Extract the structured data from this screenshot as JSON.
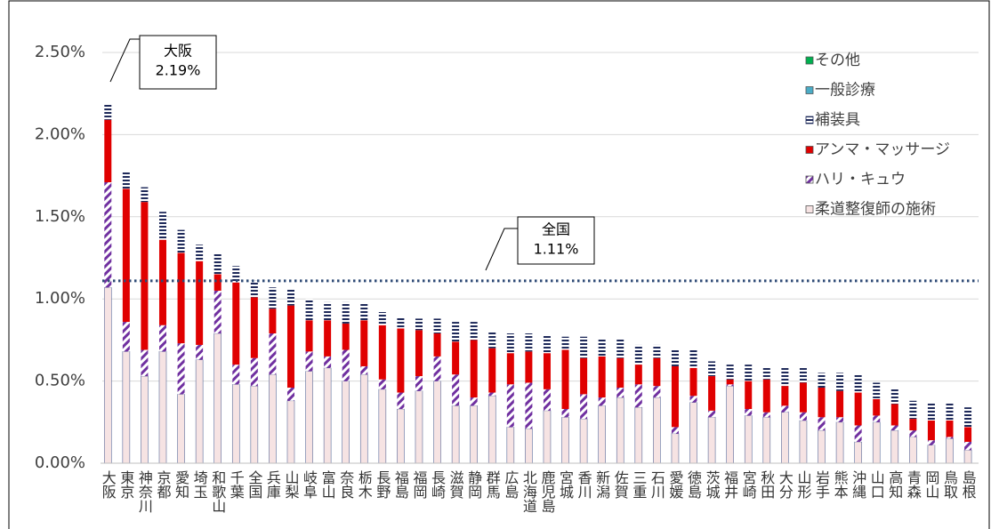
{
  "chart_data": {
    "type": "stacked_bar",
    "categories": [
      "大阪",
      "東京",
      "神奈川",
      "京都",
      "愛知",
      "埼玉",
      "和歌山",
      "千葉",
      "全国",
      "兵庫",
      "山梨",
      "岐阜",
      "富山",
      "奈良",
      "栃木",
      "長野",
      "福島",
      "福岡",
      "長崎",
      "滋賀",
      "静岡",
      "群馬",
      "広島",
      "北海道",
      "鹿児島",
      "宮城",
      "香川",
      "新潟",
      "佐賀",
      "三重",
      "石川",
      "愛媛",
      "徳島",
      "茨城",
      "福井",
      "宮崎",
      "秋田",
      "大分",
      "山形",
      "岩手",
      "熊本",
      "沖縄",
      "山口",
      "高知",
      "青森",
      "岡山",
      "鳥取",
      "島根"
    ],
    "series": [
      {
        "name": "柔道整復師の施術",
        "color": "#f6e3e3",
        "pattern": "solid",
        "values": [
          1.07,
          0.68,
          0.53,
          0.68,
          0.42,
          0.63,
          0.79,
          0.48,
          0.47,
          0.54,
          0.38,
          0.56,
          0.58,
          0.5,
          0.54,
          0.45,
          0.33,
          0.44,
          0.5,
          0.35,
          0.35,
          0.41,
          0.22,
          0.21,
          0.32,
          0.28,
          0.27,
          0.35,
          0.4,
          0.34,
          0.4,
          0.18,
          0.37,
          0.28,
          0.47,
          0.29,
          0.28,
          0.31,
          0.26,
          0.2,
          0.25,
          0.13,
          0.25,
          0.2,
          0.16,
          0.11,
          0.15,
          0.08
        ]
      },
      {
        "name": "ハリ・キュウ",
        "color": "#7030a0",
        "pattern": "diagonal",
        "values": [
          0.64,
          0.18,
          0.16,
          0.16,
          0.31,
          0.09,
          0.26,
          0.12,
          0.17,
          0.25,
          0.08,
          0.12,
          0.07,
          0.19,
          0.05,
          0.06,
          0.1,
          0.09,
          0.15,
          0.19,
          0.05,
          0.02,
          0.26,
          0.28,
          0.13,
          0.05,
          0.15,
          0.05,
          0.06,
          0.14,
          0.07,
          0.04,
          0.04,
          0.04,
          0.01,
          0.04,
          0.03,
          0.04,
          0.05,
          0.08,
          0.03,
          0.1,
          0.04,
          0.03,
          0.04,
          0.03,
          0.01,
          0.05
        ]
      },
      {
        "name": "アンマ・マッサージ",
        "color": "#e00000",
        "pattern": "solid",
        "values": [
          0.38,
          0.81,
          0.9,
          0.52,
          0.55,
          0.51,
          0.1,
          0.5,
          0.37,
          0.15,
          0.5,
          0.19,
          0.22,
          0.16,
          0.28,
          0.33,
          0.39,
          0.28,
          0.14,
          0.2,
          0.35,
          0.27,
          0.19,
          0.19,
          0.22,
          0.36,
          0.22,
          0.25,
          0.18,
          0.12,
          0.17,
          0.37,
          0.17,
          0.21,
          0.03,
          0.17,
          0.2,
          0.12,
          0.18,
          0.18,
          0.16,
          0.2,
          0.1,
          0.13,
          0.07,
          0.12,
          0.1,
          0.09
        ]
      },
      {
        "name": "補装具",
        "color": "#1f2a5a",
        "pattern": "horizontal",
        "values": [
          0.1,
          0.1,
          0.09,
          0.17,
          0.14,
          0.1,
          0.13,
          0.1,
          0.1,
          0.13,
          0.1,
          0.13,
          0.11,
          0.13,
          0.1,
          0.08,
          0.07,
          0.07,
          0.09,
          0.12,
          0.11,
          0.1,
          0.12,
          0.11,
          0.11,
          0.08,
          0.13,
          0.11,
          0.12,
          0.12,
          0.08,
          0.1,
          0.11,
          0.09,
          0.09,
          0.1,
          0.07,
          0.11,
          0.09,
          0.09,
          0.11,
          0.11,
          0.1,
          0.1,
          0.11,
          0.11,
          0.11,
          0.12
        ]
      },
      {
        "name": "一般診療",
        "color": "#4bacc6",
        "pattern": "solid",
        "values": [
          0,
          0,
          0,
          0,
          0,
          0,
          0,
          0,
          0,
          0,
          0,
          0,
          0,
          0,
          0,
          0,
          0,
          0,
          0,
          0,
          0,
          0,
          0,
          0,
          0,
          0,
          0,
          0,
          0,
          0,
          0,
          0,
          0,
          0,
          0,
          0,
          0,
          0,
          0,
          0,
          0,
          0,
          0,
          0,
          0,
          0,
          0,
          0
        ]
      },
      {
        "name": "その他",
        "color": "#00b050",
        "pattern": "solid",
        "values": [
          0,
          0,
          0,
          0,
          0,
          0,
          0,
          0,
          0,
          0,
          0,
          0,
          0,
          0,
          0,
          0,
          0,
          0,
          0,
          0,
          0,
          0,
          0,
          0,
          0,
          0,
          0,
          0,
          0,
          0,
          0,
          0,
          0,
          0,
          0,
          0,
          0,
          0,
          0,
          0,
          0,
          0,
          0,
          0,
          0,
          0,
          0,
          0
        ]
      }
    ],
    "ylim": [
      0,
      2.5
    ],
    "yticks": [
      {
        "value": 0,
        "label": "0.00%"
      },
      {
        "value": 0.5,
        "label": "0.50%"
      },
      {
        "value": 1,
        "label": "1.00%"
      },
      {
        "value": 1.5,
        "label": "1.50%"
      },
      {
        "value": 2,
        "label": "2.00%"
      },
      {
        "value": 2.5,
        "label": "2.50%"
      }
    ],
    "grid": true,
    "legend": "upper right",
    "reference_line": {
      "value": 1.11,
      "color": "#2e4a75"
    },
    "annotations": [
      {
        "title": "大阪",
        "text": "2.19%"
      },
      {
        "title": "全国",
        "text": "1.11%"
      }
    ]
  }
}
